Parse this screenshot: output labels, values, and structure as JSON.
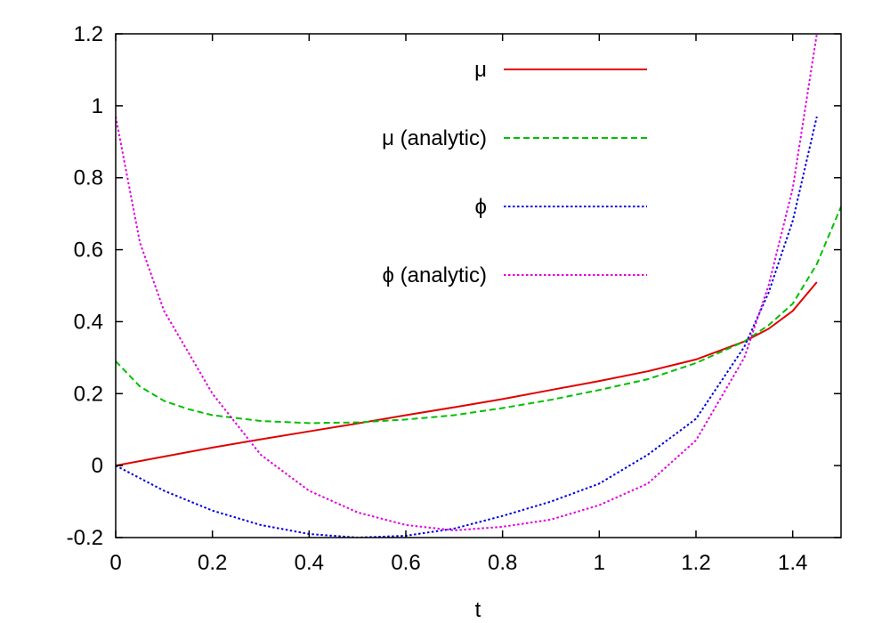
{
  "chart_data": {
    "type": "line",
    "title": "",
    "xlabel": "t",
    "ylabel": "",
    "xlim": [
      0,
      1.5
    ],
    "ylim": [
      -0.2,
      1.2
    ],
    "grid": false,
    "legend_position": "top-right",
    "x_ticks": [
      "0",
      "0.2",
      "0.4",
      "0.6",
      "0.8",
      "1",
      "1.2",
      "1.4"
    ],
    "y_ticks": [
      "-0.2",
      "0",
      "0.2",
      "0.4",
      "0.6",
      "0.8",
      "1",
      "1.2"
    ],
    "series": [
      {
        "name": "μ",
        "color": "#e00000",
        "dash": "solid",
        "x": [
          0,
          0.1,
          0.2,
          0.3,
          0.4,
          0.5,
          0.6,
          0.7,
          0.8,
          0.9,
          1.0,
          1.1,
          1.2,
          1.25,
          1.3,
          1.35,
          1.4,
          1.45
        ],
        "y": [
          0.0,
          0.025,
          0.05,
          0.073,
          0.095,
          0.117,
          0.14,
          0.162,
          0.185,
          0.21,
          0.235,
          0.262,
          0.295,
          0.32,
          0.345,
          0.38,
          0.43,
          0.51
        ]
      },
      {
        "name": "μ (analytic)",
        "color": "#00c000",
        "dash": "dashed",
        "x": [
          0,
          0.05,
          0.1,
          0.15,
          0.2,
          0.3,
          0.4,
          0.5,
          0.6,
          0.7,
          0.8,
          0.9,
          1.0,
          1.1,
          1.2,
          1.25,
          1.3,
          1.35,
          1.4,
          1.45,
          1.5
        ],
        "y": [
          0.29,
          0.22,
          0.18,
          0.157,
          0.14,
          0.124,
          0.118,
          0.12,
          0.128,
          0.14,
          0.16,
          0.183,
          0.21,
          0.24,
          0.285,
          0.315,
          0.345,
          0.39,
          0.45,
          0.56,
          0.72
        ]
      },
      {
        "name": "ϕ",
        "color": "#0000e0",
        "dash": "dotted",
        "x": [
          0,
          0.1,
          0.2,
          0.3,
          0.4,
          0.5,
          0.6,
          0.7,
          0.8,
          0.9,
          1.0,
          1.1,
          1.2,
          1.3,
          1.35,
          1.4,
          1.45
        ],
        "y": [
          0.0,
          -0.07,
          -0.125,
          -0.165,
          -0.19,
          -0.2,
          -0.195,
          -0.175,
          -0.14,
          -0.1,
          -0.05,
          0.03,
          0.13,
          0.33,
          0.48,
          0.68,
          0.97
        ]
      },
      {
        "name": "ϕ (analytic)",
        "color": "#e000e0",
        "dash": "dotted",
        "x": [
          0,
          0.05,
          0.1,
          0.2,
          0.3,
          0.4,
          0.5,
          0.6,
          0.7,
          0.8,
          0.9,
          1.0,
          1.1,
          1.2,
          1.3,
          1.35,
          1.4,
          1.45
        ],
        "y": [
          0.97,
          0.62,
          0.43,
          0.2,
          0.03,
          -0.07,
          -0.13,
          -0.165,
          -0.18,
          -0.17,
          -0.15,
          -0.11,
          -0.05,
          0.07,
          0.3,
          0.5,
          0.77,
          1.2
        ]
      }
    ]
  }
}
